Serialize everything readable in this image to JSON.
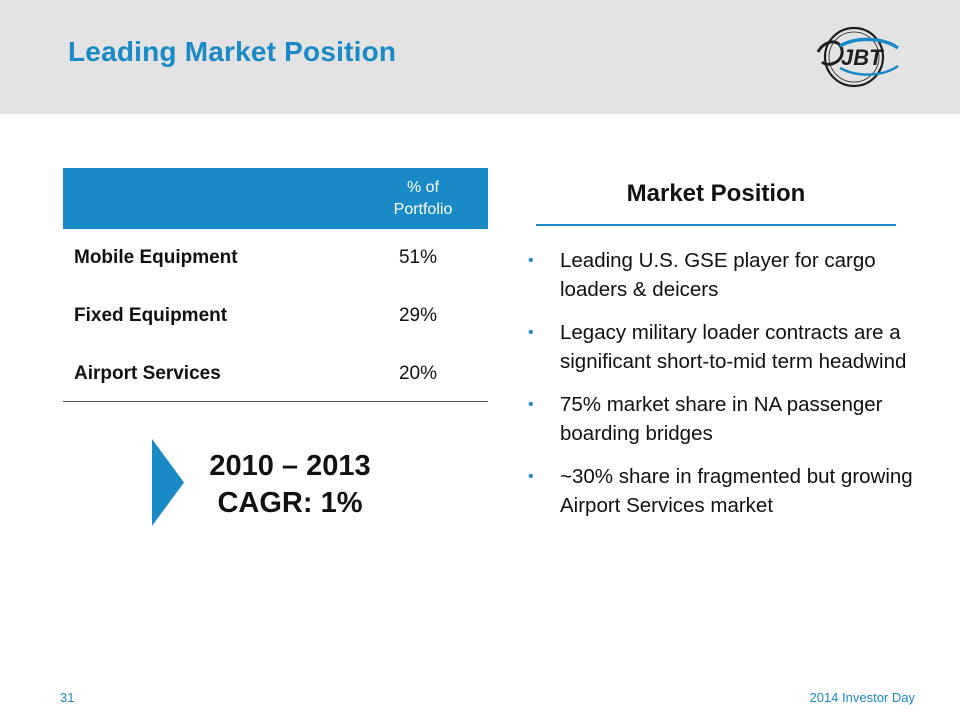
{
  "header": {
    "title": "Leading Market Position",
    "logo_text": "JBT"
  },
  "table": {
    "column_header": "% of\nPortfolio",
    "rows": [
      {
        "label": "Mobile Equipment",
        "value": "51%"
      },
      {
        "label": "Fixed Equipment",
        "value": "29%"
      },
      {
        "label": "Airport Services",
        "value": "20%"
      }
    ]
  },
  "cagr": {
    "period": "2010 – 2013",
    "value": "CAGR: 1%"
  },
  "market_position": {
    "title": "Market Position",
    "bullets": [
      "Leading U.S. GSE player for cargo loaders & deicers",
      "Legacy military loader contracts are a significant short-to-mid term headwind",
      "75% market share in NA passenger boarding bridges",
      "~30% share in fragmented but growing Airport Services market"
    ],
    "bullet_symbol": "•"
  },
  "footer": {
    "page_number": "31",
    "label": "2014 Investor Day"
  },
  "colors": {
    "accent": "#1a8ac6",
    "header_band": "#e3e3e3"
  }
}
